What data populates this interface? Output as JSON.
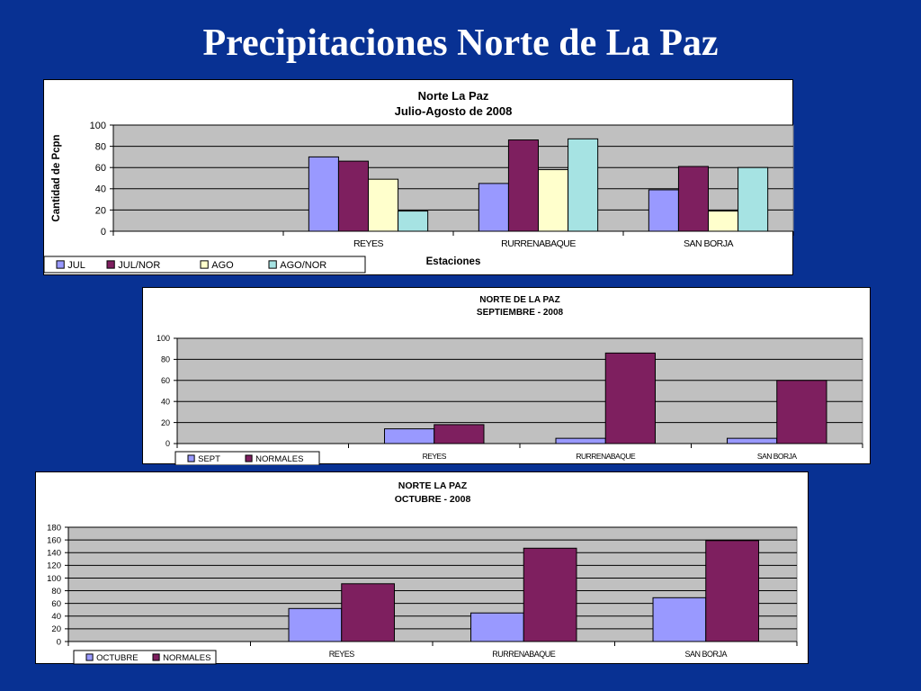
{
  "slide_title": "Precipitaciones Norte de La Paz",
  "chart_data": [
    {
      "type": "bar",
      "title": "Norte La Paz",
      "subtitle": "Julio-Agosto de 2008",
      "xlabel": "Estaciones",
      "ylabel": "Cantidad de Pcpn",
      "categories": [
        "",
        "REYES",
        "RURRENABAQUE",
        "SAN BORJA"
      ],
      "ylim": [
        0,
        100
      ],
      "yticks": [
        0,
        20,
        40,
        60,
        80,
        100
      ],
      "grid": true,
      "legend_position": "bottom-left",
      "series": [
        {
          "name": "JUL",
          "color": "#9999ff",
          "values": [
            null,
            70,
            45,
            39
          ]
        },
        {
          "name": "JUL/NOR",
          "color": "#7e1f5f",
          "values": [
            null,
            66,
            86,
            61
          ]
        },
        {
          "name": "AGO",
          "color": "#ffffcc",
          "values": [
            null,
            49,
            58,
            19
          ]
        },
        {
          "name": "AGO/NOR",
          "color": "#a6e3e3",
          "values": [
            null,
            19,
            87,
            60
          ]
        }
      ]
    },
    {
      "type": "bar",
      "title": "NORTE DE LA PAZ",
      "subtitle": "SEPTIEMBRE - 2008",
      "xlabel": "",
      "ylabel": "",
      "categories": [
        "",
        "REYES",
        "RURRENABAQUE",
        "SAN BORJA"
      ],
      "ylim": [
        0,
        100
      ],
      "yticks": [
        0,
        20,
        40,
        60,
        80,
        100
      ],
      "grid": true,
      "legend_position": "bottom-left",
      "series": [
        {
          "name": "SEPT",
          "color": "#9999ff",
          "values": [
            null,
            14,
            5,
            5
          ]
        },
        {
          "name": "NORMALES",
          "color": "#7e1f5f",
          "values": [
            null,
            18,
            86,
            60
          ]
        }
      ]
    },
    {
      "type": "bar",
      "title": "NORTE LA PAZ",
      "subtitle": "OCTUBRE - 2008",
      "xlabel": "",
      "ylabel": "",
      "categories": [
        "",
        "REYES",
        "RURRENABAQUE",
        "SAN BORJA"
      ],
      "ylim": [
        0,
        180
      ],
      "yticks": [
        0,
        20,
        40,
        60,
        80,
        100,
        120,
        140,
        160,
        180
      ],
      "grid": true,
      "legend_position": "bottom-left",
      "series": [
        {
          "name": "OCTUBRE",
          "color": "#9999ff",
          "values": [
            null,
            52,
            45,
            69
          ]
        },
        {
          "name": "NORMALES",
          "color": "#7e1f5f",
          "values": [
            null,
            91,
            147,
            159
          ]
        }
      ]
    }
  ]
}
